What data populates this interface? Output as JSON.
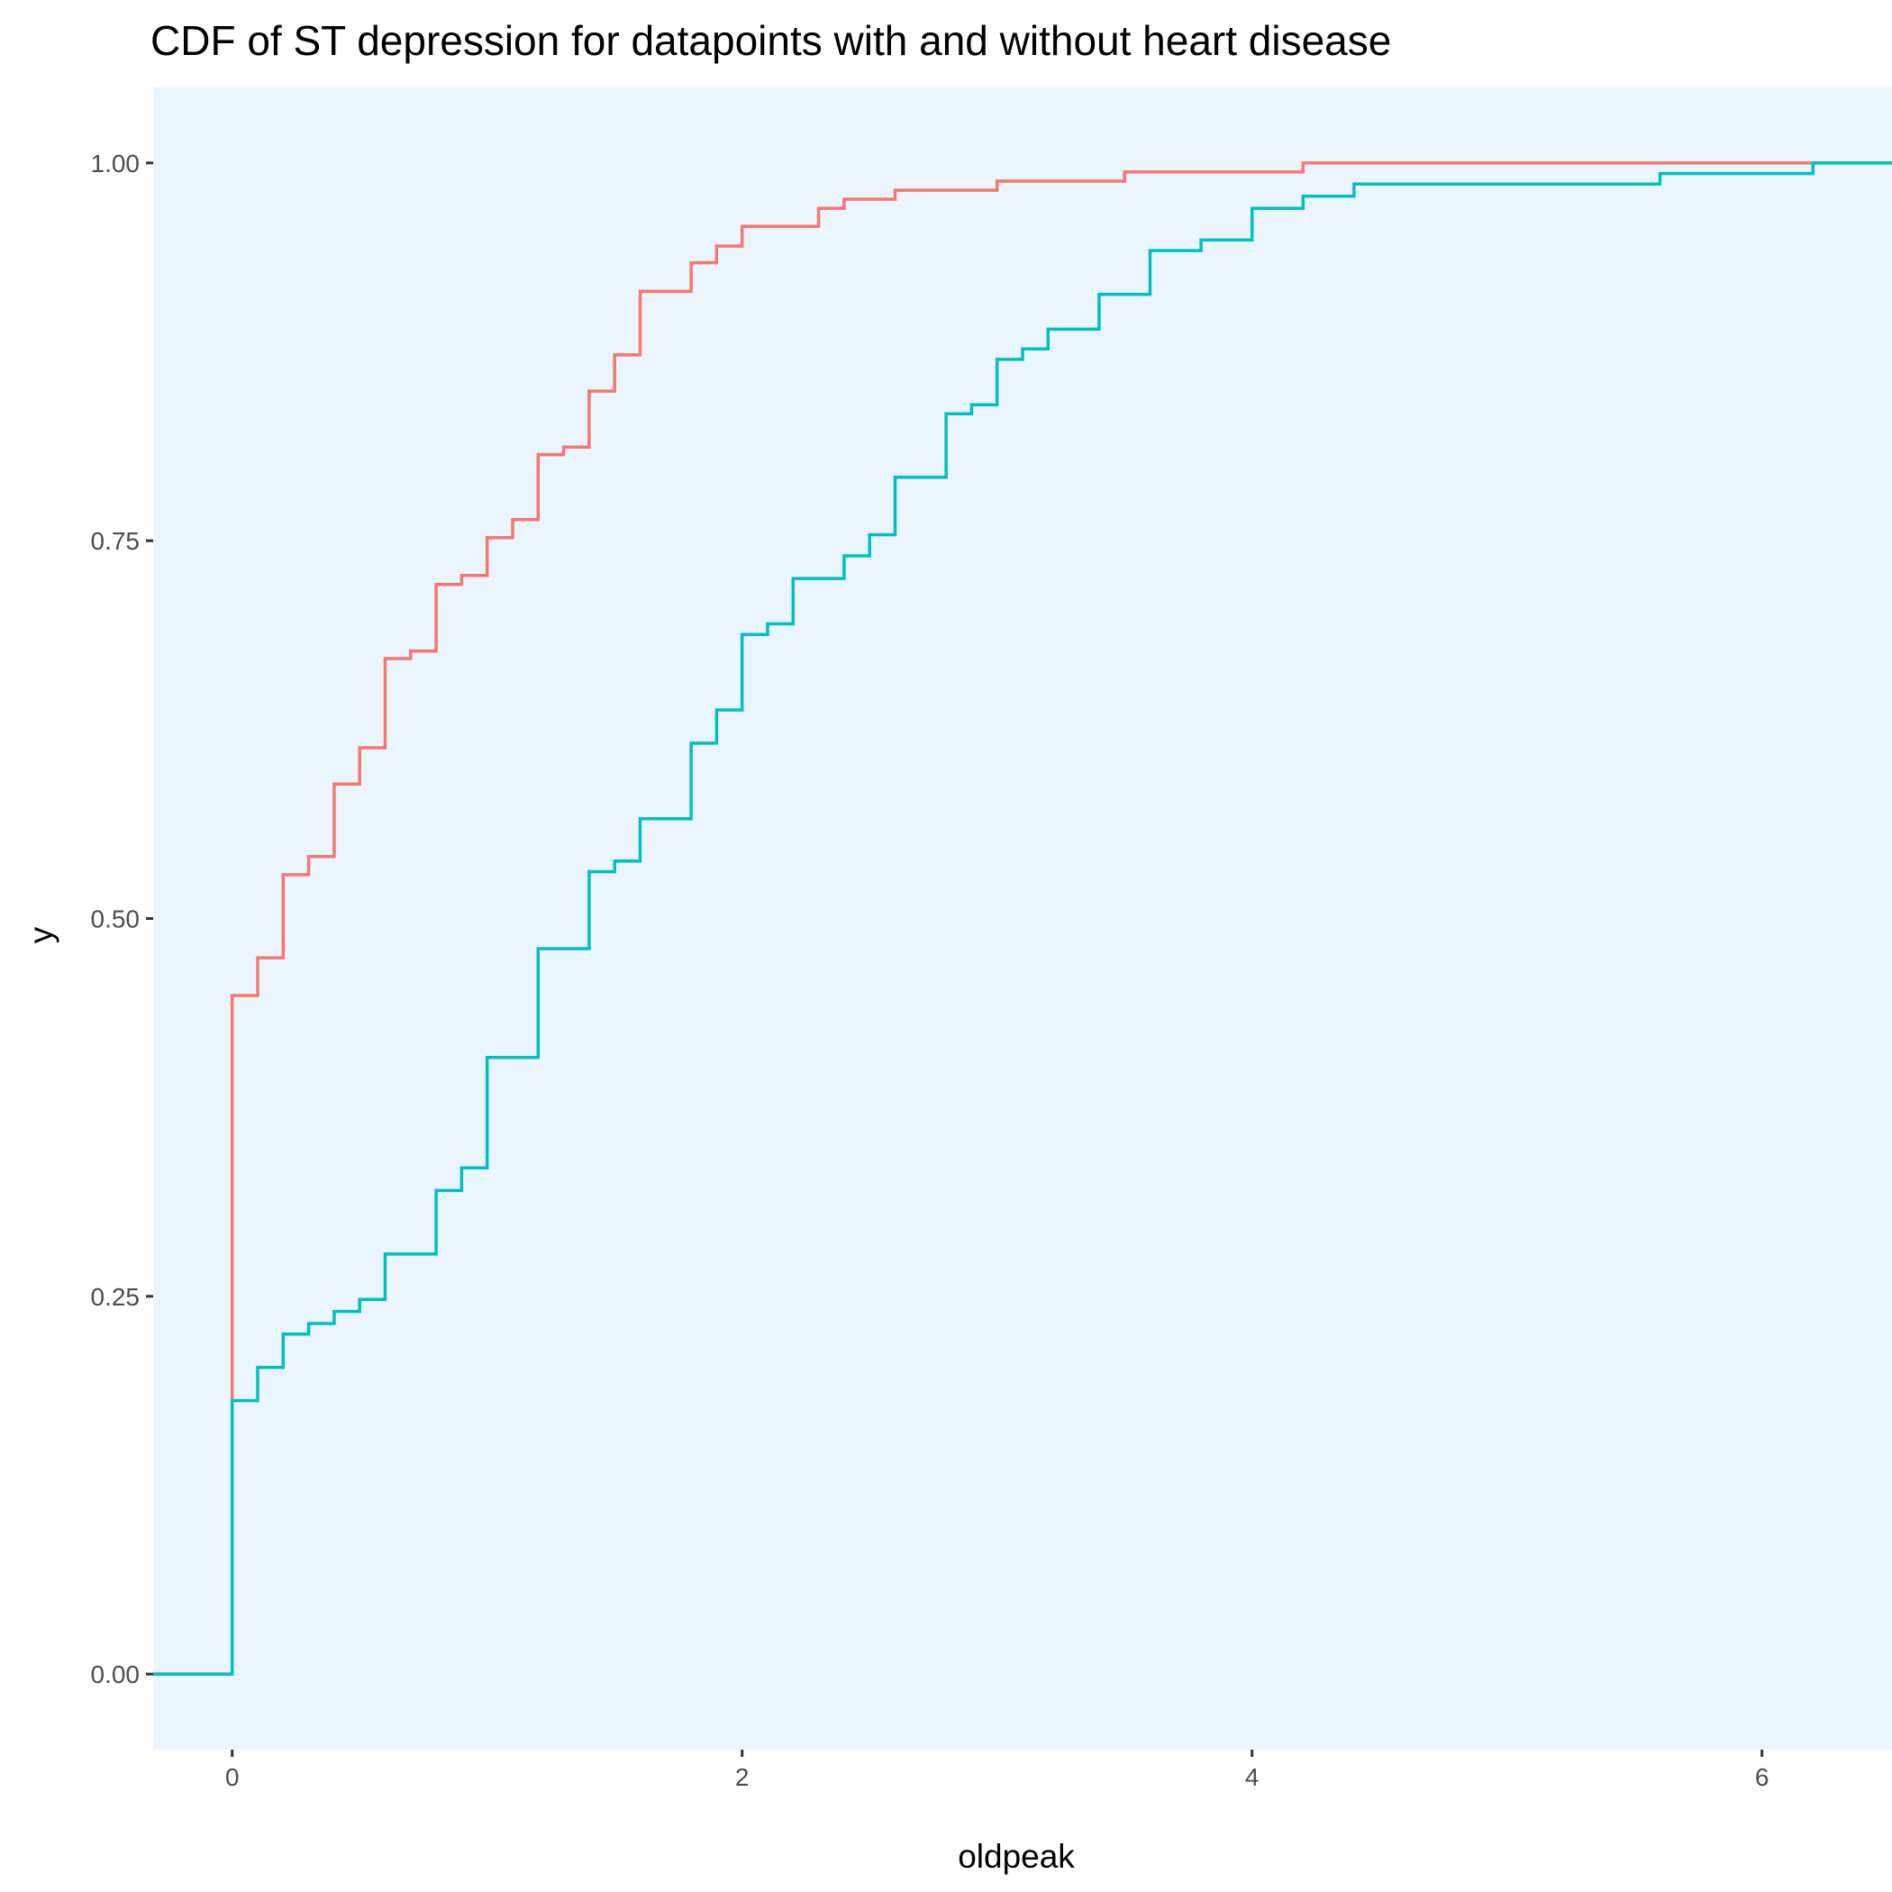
{
  "chart_data": {
    "type": "line",
    "title": "CDF of ST depression for datapoints with and without heart disease",
    "xlabel": "oldpeak",
    "ylabel": "y",
    "xlim": [
      -0.31,
      6.51
    ],
    "ylim": [
      -0.05,
      1.05
    ],
    "x_ticks": [
      0,
      2,
      4,
      6
    ],
    "y_ticks": [
      0.0,
      0.25,
      0.5,
      0.75,
      1.0
    ],
    "y_tick_labels": [
      "0.00",
      "0.25",
      "0.50",
      "0.75",
      "1.00"
    ],
    "grid": false,
    "legend": "none",
    "panel_background": "#EBF5FF",
    "series": [
      {
        "color": "#F8766D",
        "step": "post",
        "points": [
          [
            -0.31,
            0.0
          ],
          [
            0.0,
            0.449
          ],
          [
            0.1,
            0.474
          ],
          [
            0.2,
            0.529
          ],
          [
            0.3,
            0.541
          ],
          [
            0.4,
            0.589
          ],
          [
            0.5,
            0.613
          ],
          [
            0.6,
            0.672
          ],
          [
            0.7,
            0.677
          ],
          [
            0.8,
            0.721
          ],
          [
            0.9,
            0.727
          ],
          [
            1.0,
            0.752
          ],
          [
            1.1,
            0.764
          ],
          [
            1.2,
            0.807
          ],
          [
            1.3,
            0.812
          ],
          [
            1.4,
            0.849
          ],
          [
            1.5,
            0.873
          ],
          [
            1.6,
            0.915
          ],
          [
            1.8,
            0.934
          ],
          [
            1.9,
            0.945
          ],
          [
            2.0,
            0.958
          ],
          [
            2.3,
            0.97
          ],
          [
            2.4,
            0.976
          ],
          [
            2.6,
            0.982
          ],
          [
            3.0,
            0.988
          ],
          [
            3.5,
            0.994
          ],
          [
            4.2,
            1.0
          ],
          [
            6.51,
            1.0
          ]
        ]
      },
      {
        "color": "#00BFC4",
        "step": "post",
        "points": [
          [
            -0.31,
            0.0
          ],
          [
            0.0,
            0.181
          ],
          [
            0.1,
            0.203
          ],
          [
            0.2,
            0.225
          ],
          [
            0.3,
            0.232
          ],
          [
            0.4,
            0.24
          ],
          [
            0.5,
            0.248
          ],
          [
            0.6,
            0.278
          ],
          [
            0.8,
            0.32
          ],
          [
            0.9,
            0.335
          ],
          [
            1.0,
            0.408
          ],
          [
            1.2,
            0.48
          ],
          [
            1.4,
            0.531
          ],
          [
            1.5,
            0.538
          ],
          [
            1.6,
            0.566
          ],
          [
            1.8,
            0.616
          ],
          [
            1.9,
            0.638
          ],
          [
            2.0,
            0.688
          ],
          [
            2.1,
            0.695
          ],
          [
            2.2,
            0.725
          ],
          [
            2.4,
            0.74
          ],
          [
            2.5,
            0.754
          ],
          [
            2.6,
            0.792
          ],
          [
            2.8,
            0.834
          ],
          [
            2.9,
            0.84
          ],
          [
            3.0,
            0.87
          ],
          [
            3.1,
            0.877
          ],
          [
            3.2,
            0.89
          ],
          [
            3.4,
            0.913
          ],
          [
            3.6,
            0.942
          ],
          [
            3.8,
            0.949
          ],
          [
            4.0,
            0.97
          ],
          [
            4.2,
            0.978
          ],
          [
            4.4,
            0.986
          ],
          [
            5.6,
            0.993
          ],
          [
            6.2,
            1.0
          ],
          [
            6.51,
            1.0
          ]
        ]
      }
    ]
  }
}
